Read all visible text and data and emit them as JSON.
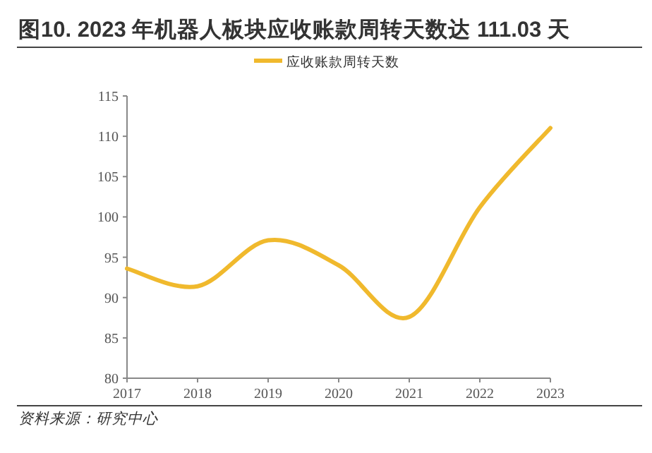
{
  "chart_data": {
    "type": "line",
    "title": "图10. 2023 年机器人板块应收账款周转天数达 111.03 天",
    "x": [
      "2017",
      "2018",
      "2019",
      "2020",
      "2021",
      "2022",
      "2023"
    ],
    "xlim": [
      "2017",
      "2023"
    ],
    "xticks": [
      "2017",
      "2018",
      "2019",
      "2020",
      "2021",
      "2022",
      "2023"
    ],
    "series": [
      {
        "name": "应收账款周转天数",
        "color": "#f0b92d",
        "values": [
          93.6,
          91.4,
          97.1,
          94.0,
          87.6,
          101.2,
          111.03
        ]
      }
    ],
    "ylim": [
      80,
      115
    ],
    "yticks": [
      80,
      85,
      90,
      95,
      100,
      105,
      110,
      115
    ],
    "grid": false,
    "legend": "top",
    "marker": "none",
    "line_style": "solid",
    "annotations": [
      "资料来源：研究中心"
    ]
  }
}
